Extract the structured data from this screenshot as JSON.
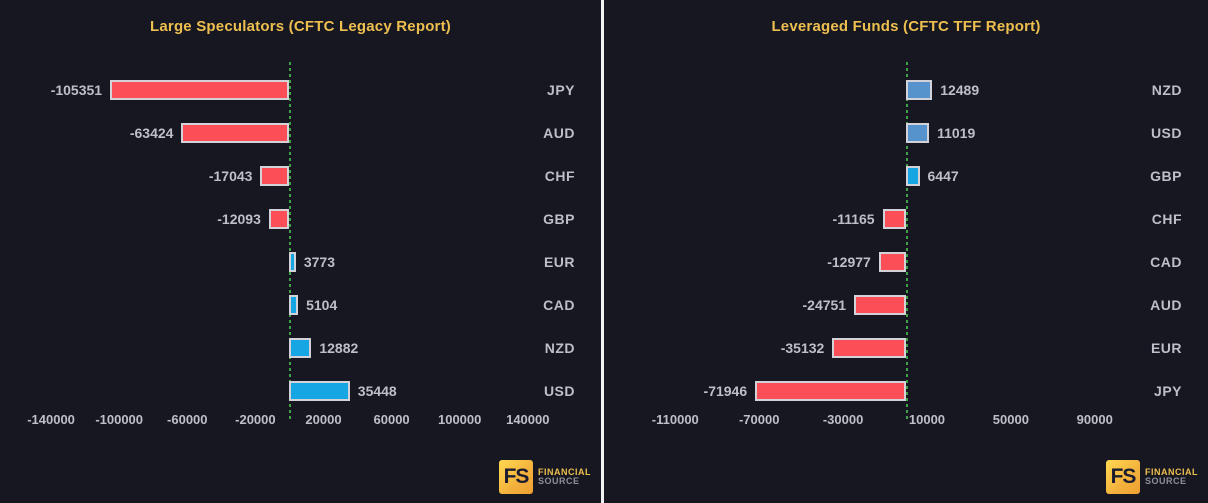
{
  "colors": {
    "background": "#171722",
    "title_text": "#edbf4f",
    "negative_bar": "#fb4e57",
    "positive_bar": "#16a6e3",
    "positive_bar_muted": "#5692cb",
    "bar_border": "#d2d2d8",
    "label_text": "#bfbfc7",
    "zero_line_green": "#3fa246",
    "panel_divider": "#f2f2f2"
  },
  "branding": {
    "badge": "FS",
    "line1": "FINANCIAL",
    "line2": "SOURCE"
  },
  "chart_data": [
    {
      "type": "bar",
      "orientation": "horizontal",
      "title": "Large Speculators (CFTC Legacy Report)",
      "categories": [
        "JPY",
        "AUD",
        "CHF",
        "GBP",
        "EUR",
        "CAD",
        "NZD",
        "USD"
      ],
      "values": [
        -105351,
        -63424,
        -17043,
        -12093,
        3773,
        5104,
        12882,
        35448
      ],
      "bar_colors": [
        "#fb4e57",
        "#fb4e57",
        "#fb4e57",
        "#fb4e57",
        "#16a6e3",
        "#16a6e3",
        "#16a6e3",
        "#16a6e3"
      ],
      "xticks": [
        -140000,
        -100000,
        -60000,
        -20000,
        20000,
        60000,
        100000,
        140000
      ],
      "xlim": [
        -170000,
        183000
      ],
      "zero_line": true,
      "value_labels": true,
      "grid": "off",
      "legend": "none"
    },
    {
      "type": "bar",
      "orientation": "horizontal",
      "title": "Leveraged Funds (CFTC TFF Report)",
      "categories": [
        "NZD",
        "USD",
        "GBP",
        "CHF",
        "CAD",
        "AUD",
        "EUR",
        "JPY"
      ],
      "values": [
        12489,
        11019,
        6447,
        -11165,
        -12977,
        -24751,
        -35132,
        -71946
      ],
      "bar_colors": [
        "#5692cb",
        "#5692cb",
        "#16a6e3",
        "#fb4e57",
        "#fb4e57",
        "#fb4e57",
        "#fb4e57",
        "#fb4e57"
      ],
      "xticks": [
        -110000,
        -70000,
        -30000,
        10000,
        50000,
        90000
      ],
      "xlim": [
        -144000,
        144000
      ],
      "zero_line": true,
      "value_labels": true,
      "grid": "off",
      "legend": "none"
    }
  ]
}
